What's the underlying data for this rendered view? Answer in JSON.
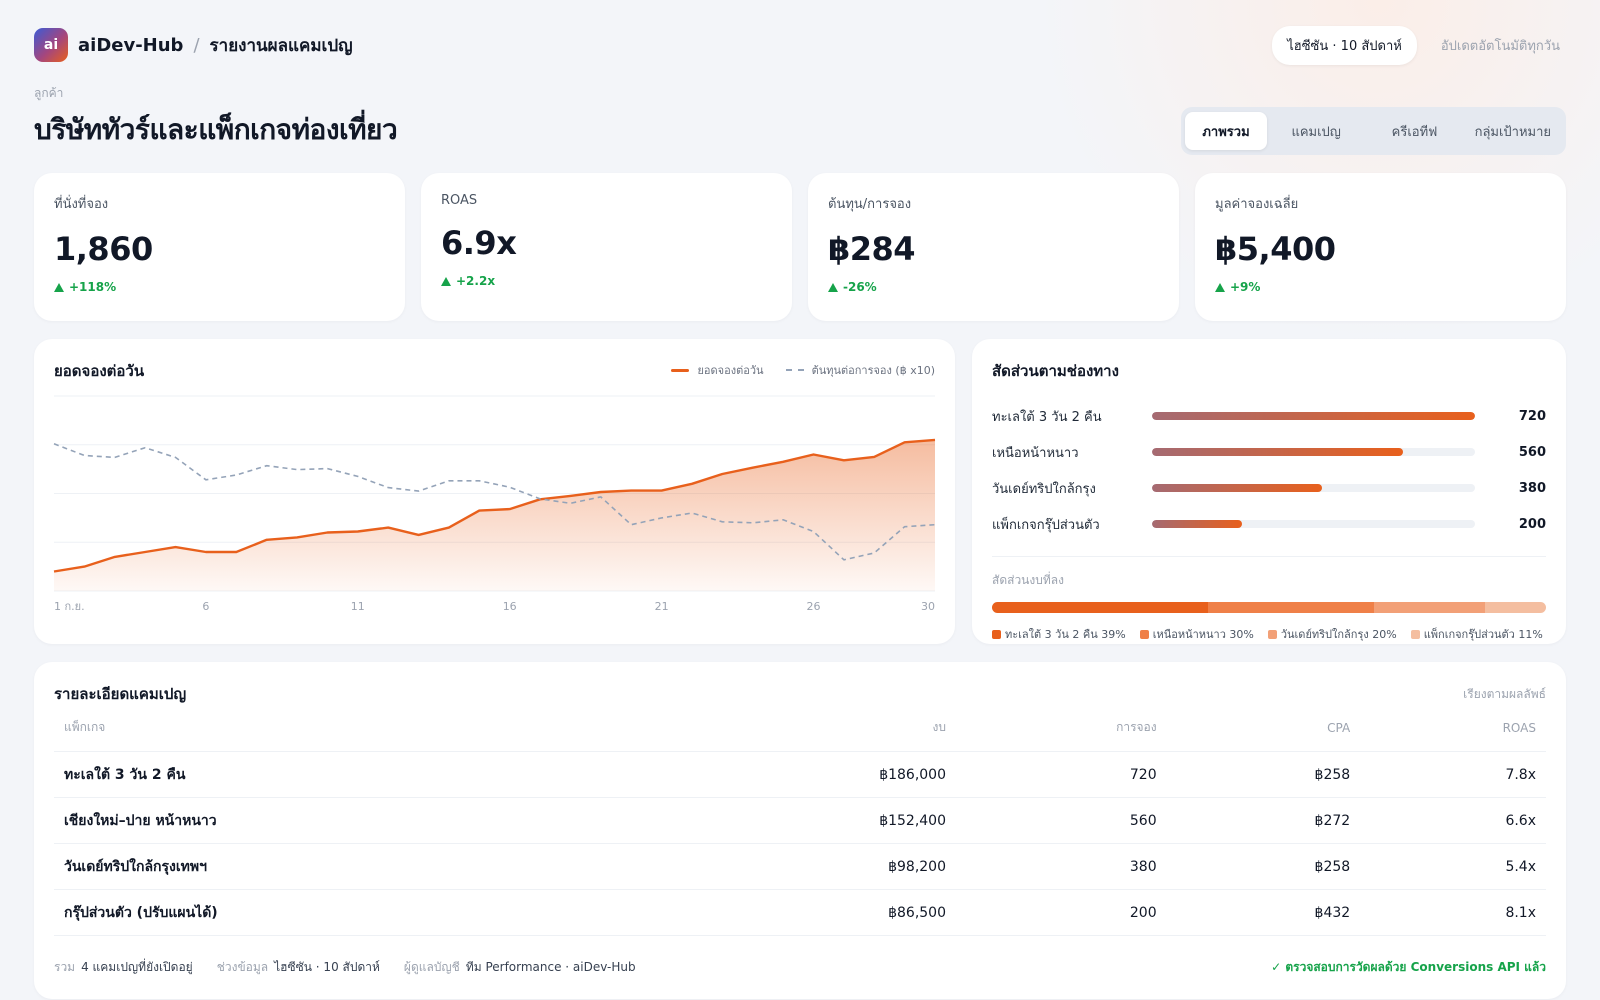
{
  "header": {
    "logo_text": "ai",
    "brand": "aiDev-Hub",
    "separator": "/",
    "page_title": "รายงานผลแคมเปญ",
    "period": "ไฮซีซัน · 10 สัปดาห์",
    "auto_update": "อัปเดตอัตโนมัติทุกวัน"
  },
  "client": {
    "label": "ลูกค้า",
    "name": "บริษัททัวร์และแพ็กเกจท่องเที่ยว"
  },
  "tabs": [
    "ภาพรวม",
    "แคมเปญ",
    "ครีเอทีฟ",
    "กลุ่มเป้าหมาย"
  ],
  "kpis": [
    {
      "label": "ที่นั่งที่จอง",
      "value": "1,860",
      "delta": "+118%"
    },
    {
      "label": "ROAS",
      "value": "6.9x",
      "delta": "+2.2x"
    },
    {
      "label": "ต้นทุน/การจอง",
      "value": "฿284",
      "delta": "-26%"
    },
    {
      "label": "มูลค่าจองเฉลี่ย",
      "value": "฿5,400",
      "delta": "+9%"
    }
  ],
  "chart": {
    "title": "ยอดจองต่อวัน",
    "legend_bookings": "ยอดจองต่อวัน",
    "legend_cost": "ต้นทุนต่อการจอง (฿ x10)"
  },
  "chart_data": {
    "type": "line",
    "x_tick_labels": [
      "1 ก.ย.",
      "6",
      "11",
      "16",
      "21",
      "26",
      "30"
    ],
    "x": [
      1,
      2,
      3,
      4,
      5,
      6,
      7,
      8,
      9,
      10,
      11,
      12,
      13,
      14,
      15,
      16,
      17,
      18,
      19,
      20,
      21,
      22,
      23,
      24,
      25,
      26,
      27,
      28,
      29,
      30
    ],
    "ylim": [
      0,
      40
    ],
    "grid": true,
    "legend_position": "top-right",
    "series": [
      {
        "name": "ยอดจองต่อวัน",
        "color": "#e8601c",
        "area": true,
        "values": [
          4,
          5,
          7,
          8,
          9,
          8,
          8,
          10.5,
          11,
          12,
          12.2,
          13,
          11.5,
          13,
          16.5,
          16.8,
          18.8,
          19.5,
          20.3,
          20.6,
          20.6,
          22,
          24,
          25.3,
          26.5,
          28,
          26.8,
          27.5,
          30.5,
          31
        ]
      },
      {
        "name": "ต้นทุนต่อการจอง (฿ x10)",
        "color": "#94a3b8",
        "dashed": true,
        "values": [
          30.2,
          27.8,
          27.4,
          29.4,
          27.4,
          22.8,
          23.8,
          25.7,
          24.9,
          25.1,
          23.5,
          21.2,
          20.5,
          22.6,
          22.6,
          21.3,
          18.9,
          18,
          19.3,
          13.6,
          15,
          16,
          14.2,
          14,
          14.6,
          12.2,
          6.4,
          7.8,
          13.2,
          13.6
        ]
      }
    ]
  },
  "channels": {
    "title": "สัดส่วนตามช่องทาง",
    "max": 720,
    "items": [
      {
        "name": "ทะเลใต้ 3 วัน 2 คืน",
        "value": 720,
        "value_label": "720"
      },
      {
        "name": "เหนือหน้าหนาว",
        "value": 560,
        "value_label": "560"
      },
      {
        "name": "วันเดย์ทริปใกล้กรุง",
        "value": 380,
        "value_label": "380"
      },
      {
        "name": "แพ็กเกจกรุ๊ปส่วนตัว",
        "value": 200,
        "value_label": "200"
      }
    ],
    "share_label": "สัดส่วนงบที่ลง",
    "share": [
      {
        "label": "ทะเลใต้ 3 วัน 2 คืน 39%",
        "pct": 39,
        "color": "#e8601c"
      },
      {
        "label": "เหนือหน้าหนาว 30%",
        "pct": 30,
        "color": "#ef8048"
      },
      {
        "label": "วันเดย์ทริปใกล้กรุง 20%",
        "pct": 20,
        "color": "#f2a077"
      },
      {
        "label": "แพ็กเกจกรุ๊ปส่วนตัว 11%",
        "pct": 11,
        "color": "#f4bea0"
      }
    ]
  },
  "table": {
    "title": "รายละเอียดแคมเปญ",
    "sort_note": "เรียงตามผลลัพธ์",
    "columns": [
      "แพ็กเกจ",
      "งบ",
      "การจอง",
      "CPA",
      "ROAS"
    ],
    "rows": [
      [
        "ทะเลใต้ 3 วัน 2 คืน",
        "฿186,000",
        "720",
        "฿258",
        "7.8x"
      ],
      [
        "เชียงใหม่–ปาย หน้าหนาว",
        "฿152,400",
        "560",
        "฿272",
        "6.6x"
      ],
      [
        "วันเดย์ทริปใกล้กรุงเทพฯ",
        "฿98,200",
        "380",
        "฿258",
        "5.4x"
      ],
      [
        "กรุ๊ปส่วนตัว (ปรับแผนได้)",
        "฿86,500",
        "200",
        "฿432",
        "8.1x"
      ]
    ]
  },
  "footer": {
    "total_key": "รวม",
    "total_val": "4 แคมเปญที่ยังเปิดอยู่",
    "range_key": "ช่วงข้อมูล",
    "range_val": "ไฮซีซัน · 10 สัปดาห์",
    "owner_key": "ผู้ดูแลบัญชี",
    "owner_val": "ทีม Performance · aiDev-Hub",
    "verified": "✓ ตรวจสอบการวัดผลด้วย Conversions API แล้ว"
  }
}
